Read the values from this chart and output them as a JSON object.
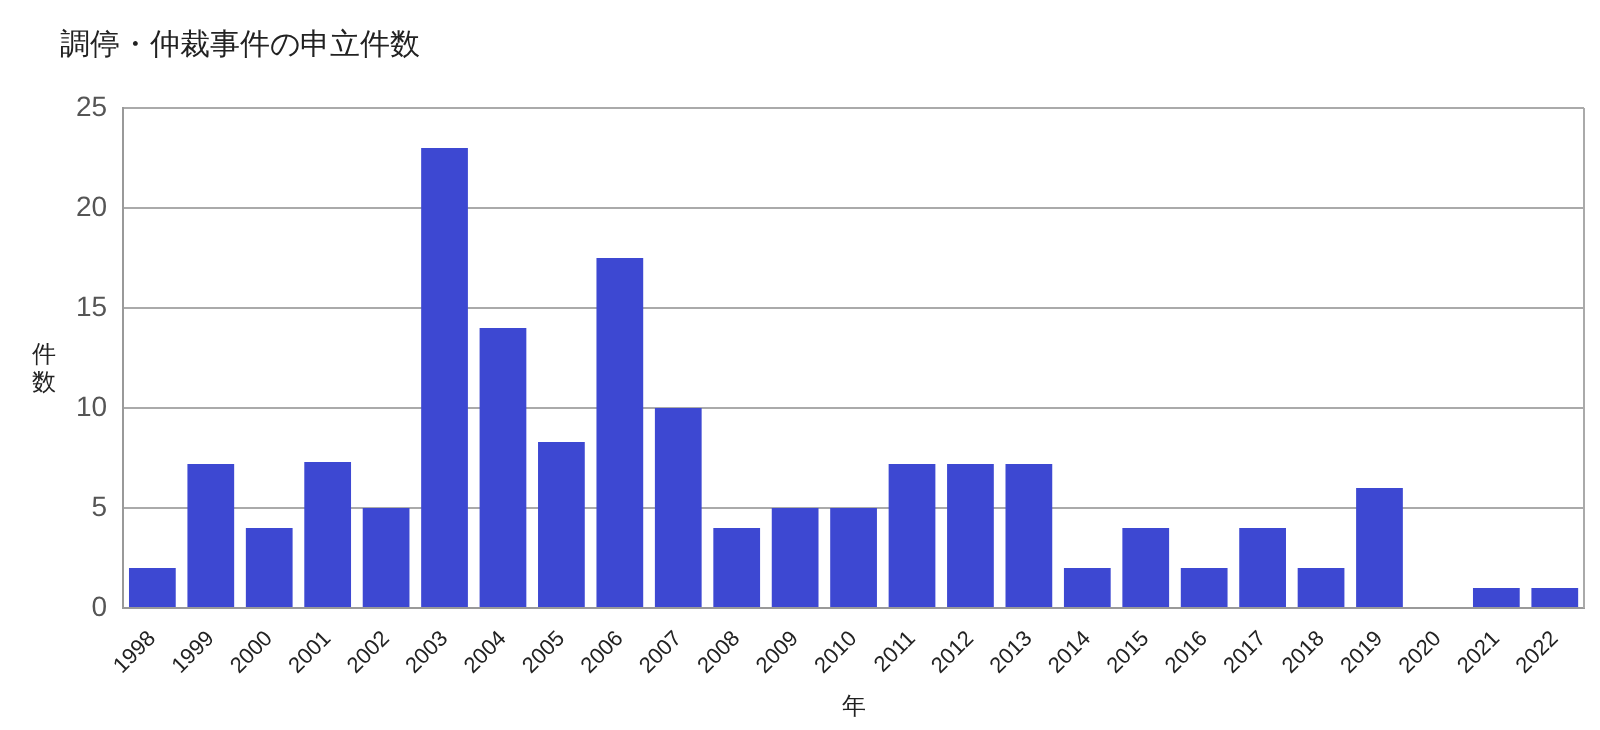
{
  "chart_data": {
    "type": "bar",
    "title": "調停・仲裁事件の申立件数",
    "xlabel": "年",
    "ylabel": "件数",
    "categories": [
      "1998",
      "1999",
      "2000",
      "2001",
      "2002",
      "2003",
      "2004",
      "2005",
      "2006",
      "2007",
      "2008",
      "2009",
      "2010",
      "2011",
      "2012",
      "2013",
      "2014",
      "2015",
      "2016",
      "2017",
      "2018",
      "2019",
      "2020",
      "2021",
      "2022"
    ],
    "values": [
      2,
      7.2,
      4,
      7.3,
      5,
      23,
      14,
      8.3,
      17.5,
      10,
      4,
      5,
      5,
      7.2,
      7.2,
      7.2,
      2,
      4,
      2,
      4,
      2,
      6,
      0,
      1,
      1
    ],
    "color": "#3d48d2",
    "ylim": [
      0,
      25
    ],
    "yticks": [
      0,
      5,
      10,
      15,
      20,
      25
    ],
    "grid": "y",
    "legend": false
  }
}
